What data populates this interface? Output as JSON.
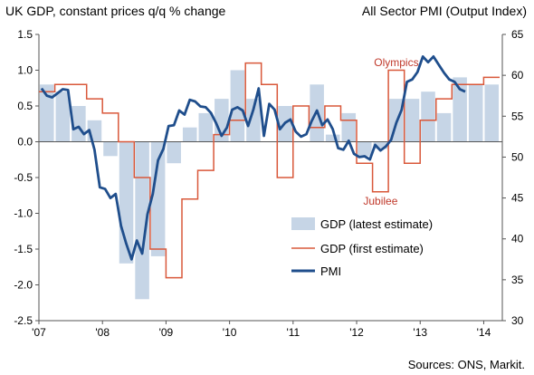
{
  "chart_data": {
    "type": "bar",
    "title_left": "UK GDP, constant prices q/q % change",
    "title_right": "All Sector PMI (Output Index)",
    "source": "Sources: ONS, Markit.",
    "x_ticks": [
      "'07",
      "'08",
      "'09",
      "'10",
      "'11",
      "'12",
      "'13",
      "'14"
    ],
    "left_axis": {
      "ylim": [
        -2.5,
        1.5
      ],
      "ticks": [
        "1.5",
        "1.0",
        "0.5",
        "0.0",
        "-0.5",
        "-1.0",
        "-1.5",
        "-2.0",
        "-2.5"
      ]
    },
    "right_axis": {
      "ylim": [
        30,
        65
      ],
      "ticks": [
        "65",
        "60",
        "55",
        "50",
        "45",
        "40",
        "35",
        "30"
      ]
    },
    "quarters": [
      "2007Q1",
      "2007Q2",
      "2007Q3",
      "2007Q4",
      "2008Q1",
      "2008Q2",
      "2008Q3",
      "2008Q4",
      "2009Q1",
      "2009Q2",
      "2009Q3",
      "2009Q4",
      "2010Q1",
      "2010Q2",
      "2010Q3",
      "2010Q4",
      "2011Q1",
      "2011Q2",
      "2011Q3",
      "2011Q4",
      "2012Q1",
      "2012Q2",
      "2012Q3",
      "2012Q4",
      "2013Q1",
      "2013Q2",
      "2013Q3",
      "2013Q4",
      "2014Q1"
    ],
    "series": [
      {
        "name": "GDP (latest estimate)",
        "kind": "bar",
        "axis": "left",
        "values": [
          0.8,
          0.7,
          0.5,
          0.3,
          -0.2,
          -1.7,
          -2.2,
          -1.6,
          -0.3,
          0.2,
          0.4,
          0.6,
          1.0,
          0.6,
          0.0,
          0.5,
          0.0,
          0.8,
          0.1,
          0.4,
          -0.2,
          -0.1,
          0.6,
          0.6,
          0.7,
          0.4,
          0.9,
          0.8,
          0.8
        ]
      },
      {
        "name": "GDP (first estimate)",
        "kind": "line",
        "axis": "left",
        "step": true,
        "values": [
          0.7,
          0.8,
          0.8,
          0.6,
          0.4,
          0.0,
          -0.5,
          -1.5,
          -1.9,
          -0.8,
          -0.4,
          0.1,
          0.3,
          1.1,
          0.8,
          -0.5,
          0.5,
          0.2,
          0.5,
          0.3,
          -0.3,
          -0.7,
          1.0,
          -0.3,
          0.3,
          0.6,
          0.8,
          0.8,
          0.9
        ]
      },
      {
        "name": "PMI",
        "kind": "line",
        "axis": "right",
        "values": [
          58.4,
          57.5,
          57.3,
          57.8,
          58.3,
          58.2,
          53.4,
          53.7,
          52.8,
          53.3,
          50.9,
          46.3,
          46.1,
          45.0,
          45.5,
          41.6,
          39.4,
          37.5,
          39.8,
          38.2,
          43.0,
          45.5,
          49.6,
          51.0,
          53.8,
          53.9,
          55.7,
          55.2,
          57.0,
          56.8,
          56.2,
          56.1,
          55.4,
          54.1,
          52.6,
          53.6,
          55.8,
          56.1,
          55.7,
          53.8,
          55.8,
          58.4,
          52.6,
          56.5,
          55.8,
          53.4,
          54.2,
          54.6,
          53.1,
          52.5,
          52.8,
          54.4,
          55.7,
          53.9,
          54.6,
          53.4,
          51.1,
          50.9,
          52.0,
          50.4,
          50.0,
          50.1,
          49.7,
          51.5,
          50.8,
          51.3,
          52.1,
          54.2,
          55.8,
          59.2,
          59.5,
          60.4,
          62.3,
          61.6,
          62.3,
          61.3,
          60.3,
          59.5,
          59.2,
          58.3,
          58.0
        ]
      }
    ],
    "annotations": [
      {
        "text": "Olympics",
        "quarter": "2012Q3"
      },
      {
        "text": "Jubilee",
        "quarter": "2012Q2"
      }
    ],
    "legend_position": "bottom-right",
    "colors": {
      "bar": "#c6d5e6",
      "first_estimate": "#d9583a",
      "pmi": "#1f4e8c",
      "annotation": "#c0392b"
    }
  }
}
